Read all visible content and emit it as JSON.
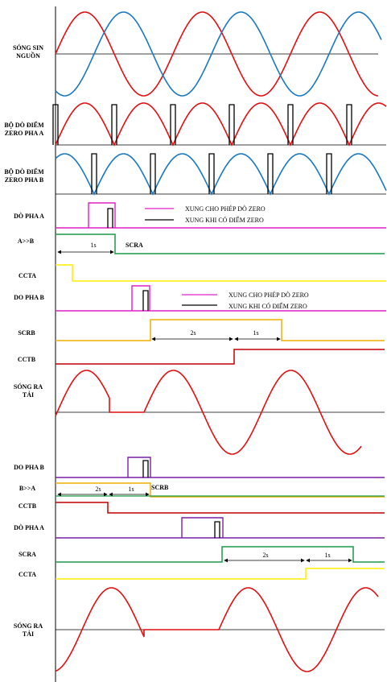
{
  "colors": {
    "phase_a": "#e01010",
    "phase_b": "#1a78c2",
    "enable_pulse": "#e020c8",
    "zero_pulse": "#000000",
    "scr_a": "#1a9a4a",
    "cct_a": "#ffee00",
    "scr_b": "#f0b000",
    "cct_b": "#c00000",
    "purple": "#7a1fa8",
    "axis": "#000000"
  },
  "labels": {
    "source": [
      "SÓNG SIN",
      "NGUỒN"
    ],
    "zero_a": [
      "BỘ DÒ ĐIỂM",
      "ZERO PHA A"
    ],
    "zero_b": [
      "BỘ DÒ ĐIỂM",
      "ZERO PHA B"
    ],
    "do_pha_a_1": "DÒ PHA A",
    "a_to_b": "A>>B",
    "ccta_1": "CCTA",
    "do_pha_b_1": "DO PHA B",
    "scrb_1": "SCRB",
    "cctb_1": "CCTB",
    "load_1": [
      "SÓNG RA",
      "TẢI"
    ],
    "do_pha_b_2": "DO PHA B",
    "b_to_a": "B>>A",
    "cctb_2": "CCTB",
    "do_pha_a_2": "DÒ PHA A",
    "scra_2": "SCRA",
    "ccta_2": "CCTA",
    "load_2": [
      "SÓNG RA",
      "TẢI"
    ]
  },
  "legend_1": {
    "enable": "XUNG CHO PHÉP DÒ ZERO",
    "zero": "XUNG KHI CÓ ĐIỂM ZERO"
  },
  "legend_2": {
    "enable": "XUNG CHO PHÉP DÒ ZERO",
    "zero": "XUNG KHI CÓ ĐIỂM ZERO"
  },
  "annotations": {
    "a_to_b_delay": "1s",
    "scra": "SCRA",
    "scrb_delay_1": "2s",
    "scrb_delay_2": "1s",
    "b_to_a_delay_1": "2s",
    "b_to_a_delay_2": "1s",
    "scrb": "SCRB",
    "scra_delay_1": "2s",
    "scra_delay_2": "1s"
  }
}
